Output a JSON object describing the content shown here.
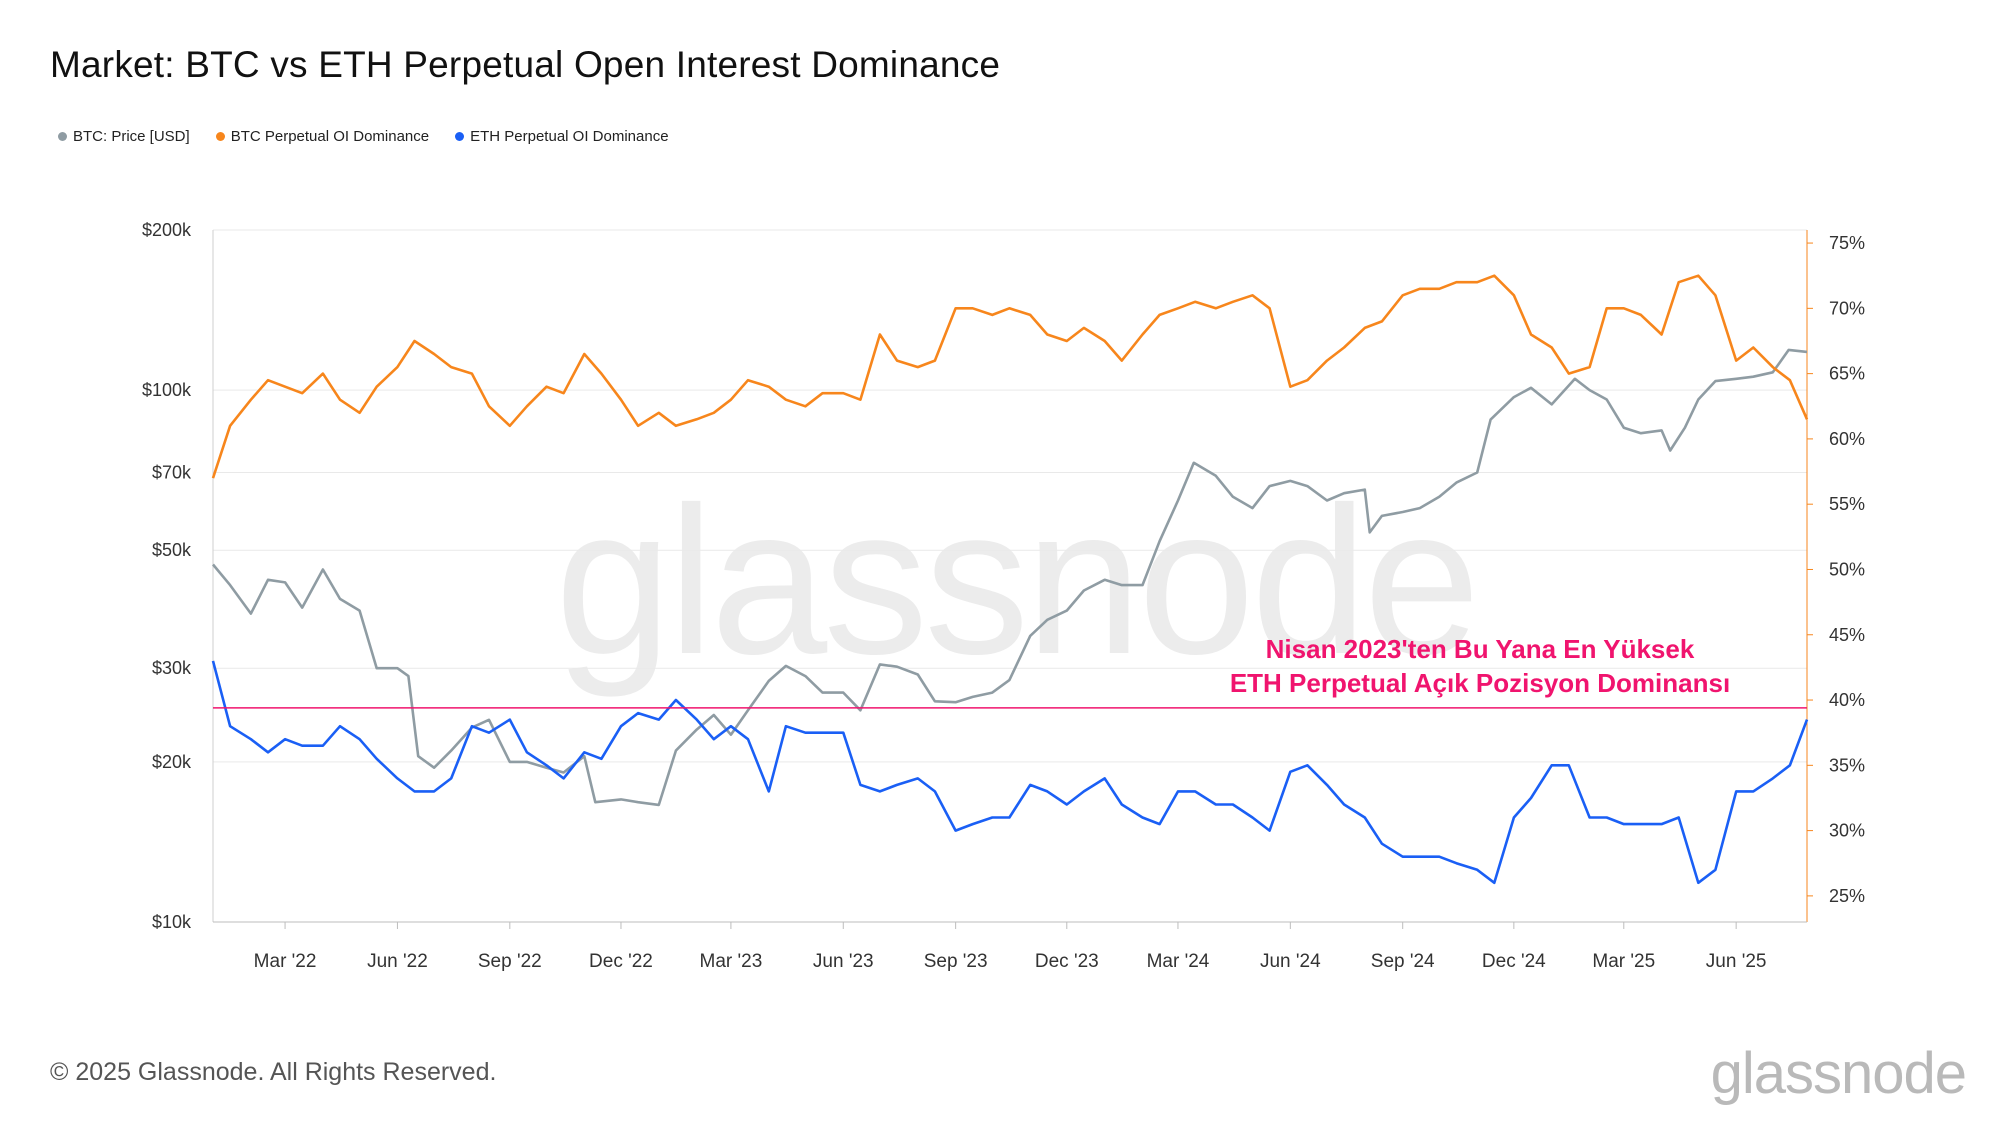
{
  "title": "Market: BTC vs ETH Perpetual Open Interest Dominance",
  "legend": [
    {
      "label": "BTC: Price [USD]",
      "color": "#8f9ca3"
    },
    {
      "label": "BTC Perpetual OI Dominance",
      "color": "#f7861c"
    },
    {
      "label": "ETH Perpetual OI Dominance",
      "color": "#1a5ff5"
    }
  ],
  "annotation": {
    "line1": "Nisan 2023'ten Bu Yana En Yüksek",
    "line2": "ETH Perpetual Açık Pozisyon Dominansı",
    "color": "#f0146e"
  },
  "watermark": "glassnode",
  "footer": "© 2025 Glassnode. All Rights Reserved.",
  "logo": "glassnode",
  "chart_data": {
    "type": "line",
    "x_ticks": [
      "Mar '22",
      "Jun '22",
      "Sep '22",
      "Dec '22",
      "Mar '23",
      "Jun '23",
      "Sep '23",
      "Dec '23",
      "Mar '24",
      "Jun '24",
      "Sep '24",
      "Dec '24",
      "Mar '25",
      "Jun '25"
    ],
    "x_range": [
      "2022-01-01",
      "2025-07-29"
    ],
    "y_left": {
      "scale": "log",
      "ticks": [
        "$10k",
        "$20k",
        "$30k",
        "$50k",
        "$70k",
        "$100k",
        "$200k"
      ],
      "tick_values": [
        10000,
        20000,
        30000,
        50000,
        70000,
        100000,
        200000
      ],
      "range": [
        10000,
        200000
      ]
    },
    "y_right": {
      "scale": "linear",
      "ticks": [
        "25%",
        "30%",
        "35%",
        "40%",
        "45%",
        "50%",
        "55%",
        "60%",
        "65%",
        "70%",
        "75%"
      ],
      "tick_values": [
        25,
        30,
        35,
        40,
        45,
        50,
        55,
        60,
        65,
        70,
        75
      ],
      "range": [
        23,
        76
      ]
    },
    "reference_line": {
      "axis": "right",
      "value": 39.4,
      "color": "#f0146e"
    },
    "series": [
      {
        "name": "BTC: Price [USD]",
        "axis": "left",
        "color": "#8f9ca3",
        "x": [
          "2022-01-01",
          "2022-01-15",
          "2022-02-01",
          "2022-02-15",
          "2022-03-01",
          "2022-03-15",
          "2022-04-01",
          "2022-04-15",
          "2022-05-01",
          "2022-05-15",
          "2022-06-01",
          "2022-06-10",
          "2022-06-18",
          "2022-07-01",
          "2022-07-15",
          "2022-08-01",
          "2022-08-15",
          "2022-09-01",
          "2022-09-15",
          "2022-10-01",
          "2022-10-15",
          "2022-11-01",
          "2022-11-10",
          "2022-12-01",
          "2022-12-15",
          "2023-01-01",
          "2023-01-15",
          "2023-02-01",
          "2023-02-15",
          "2023-03-01",
          "2023-03-15",
          "2023-04-01",
          "2023-04-15",
          "2023-05-01",
          "2023-05-15",
          "2023-06-01",
          "2023-06-15",
          "2023-07-01",
          "2023-07-15",
          "2023-08-01",
          "2023-08-15",
          "2023-09-01",
          "2023-09-15",
          "2023-10-01",
          "2023-10-15",
          "2023-11-01",
          "2023-11-15",
          "2023-12-01",
          "2023-12-15",
          "2024-01-01",
          "2024-01-15",
          "2024-02-01",
          "2024-02-15",
          "2024-03-01",
          "2024-03-14",
          "2024-04-01",
          "2024-04-15",
          "2024-05-01",
          "2024-05-15",
          "2024-06-01",
          "2024-06-15",
          "2024-07-01",
          "2024-07-15",
          "2024-08-01",
          "2024-08-05",
          "2024-08-15",
          "2024-09-01",
          "2024-09-15",
          "2024-10-01",
          "2024-10-15",
          "2024-11-01",
          "2024-11-12",
          "2024-12-01",
          "2024-12-15",
          "2025-01-01",
          "2025-01-20",
          "2025-02-01",
          "2025-02-15",
          "2025-03-01",
          "2025-03-15",
          "2025-04-01",
          "2025-04-08",
          "2025-04-20",
          "2025-05-01",
          "2025-05-15",
          "2025-06-01",
          "2025-06-15",
          "2025-07-01",
          "2025-07-14",
          "2025-07-29"
        ],
        "values": [
          47000,
          43000,
          38000,
          44000,
          43500,
          39000,
          46000,
          40500,
          38500,
          30000,
          30000,
          29000,
          20500,
          19500,
          21000,
          23200,
          24000,
          20000,
          20000,
          19500,
          19100,
          20500,
          16800,
          17000,
          16800,
          16600,
          21000,
          23000,
          24500,
          22500,
          25000,
          28400,
          30300,
          29000,
          27000,
          27000,
          25000,
          30500,
          30200,
          29200,
          26000,
          25900,
          26500,
          27000,
          28500,
          34500,
          37000,
          38500,
          42000,
          44000,
          43000,
          43000,
          52000,
          62000,
          73000,
          69000,
          63000,
          60000,
          66000,
          67500,
          66000,
          62000,
          64000,
          65000,
          54000,
          58000,
          59000,
          60000,
          63000,
          67000,
          70000,
          88000,
          97000,
          101000,
          94000,
          105000,
          100000,
          96000,
          85000,
          83000,
          84000,
          77000,
          85000,
          96000,
          104000,
          105000,
          106000,
          108000,
          119000,
          118000
        ]
      },
      {
        "name": "BTC Perpetual OI Dominance",
        "axis": "right",
        "color": "#f7861c",
        "x": [
          "2022-01-01",
          "2022-01-15",
          "2022-02-01",
          "2022-02-15",
          "2022-03-01",
          "2022-03-15",
          "2022-04-01",
          "2022-04-15",
          "2022-05-01",
          "2022-05-15",
          "2022-06-01",
          "2022-06-15",
          "2022-07-01",
          "2022-07-15",
          "2022-08-01",
          "2022-08-15",
          "2022-09-01",
          "2022-09-15",
          "2022-10-01",
          "2022-10-15",
          "2022-11-01",
          "2022-11-15",
          "2022-12-01",
          "2022-12-15",
          "2023-01-01",
          "2023-01-15",
          "2023-02-01",
          "2023-02-15",
          "2023-03-01",
          "2023-03-15",
          "2023-04-01",
          "2023-04-15",
          "2023-05-01",
          "2023-05-15",
          "2023-06-01",
          "2023-06-15",
          "2023-07-01",
          "2023-07-15",
          "2023-08-01",
          "2023-08-15",
          "2023-09-01",
          "2023-09-15",
          "2023-10-01",
          "2023-10-15",
          "2023-11-01",
          "2023-11-15",
          "2023-12-01",
          "2023-12-15",
          "2024-01-01",
          "2024-01-15",
          "2024-02-01",
          "2024-02-15",
          "2024-03-01",
          "2024-03-15",
          "2024-04-01",
          "2024-04-15",
          "2024-05-01",
          "2024-05-15",
          "2024-06-01",
          "2024-06-15",
          "2024-07-01",
          "2024-07-15",
          "2024-08-01",
          "2024-08-15",
          "2024-09-01",
          "2024-09-15",
          "2024-10-01",
          "2024-10-15",
          "2024-11-01",
          "2024-11-15",
          "2024-12-01",
          "2024-12-15",
          "2025-01-01",
          "2025-01-15",
          "2025-02-01",
          "2025-02-15",
          "2025-03-01",
          "2025-03-15",
          "2025-04-01",
          "2025-04-15",
          "2025-05-01",
          "2025-05-15",
          "2025-06-01",
          "2025-06-15",
          "2025-07-01",
          "2025-07-15",
          "2025-07-29"
        ],
        "values": [
          57,
          61,
          63,
          64.5,
          64,
          63.5,
          65,
          63,
          62,
          64,
          65.5,
          67.5,
          66.5,
          65.5,
          65,
          62.5,
          61,
          62.5,
          64,
          63.5,
          66.5,
          65,
          63,
          61,
          62,
          61,
          61.5,
          62,
          63,
          64.5,
          64,
          63,
          62.5,
          63.5,
          63.5,
          63,
          68,
          66,
          65.5,
          66,
          70,
          70,
          69.5,
          70,
          69.5,
          68,
          67.5,
          68.5,
          67.5,
          66,
          68,
          69.5,
          70,
          70.5,
          70,
          70.5,
          71,
          70,
          64,
          64.5,
          66,
          67,
          68.5,
          69,
          71,
          71.5,
          71.5,
          72,
          72,
          72.5,
          71,
          68,
          67,
          65,
          65.5,
          70,
          70,
          69.5,
          68,
          72,
          72.5,
          71,
          66,
          67,
          65.5,
          64.5,
          61.5
        ]
      },
      {
        "name": "ETH Perpetual OI Dominance",
        "axis": "right",
        "color": "#1a5ff5",
        "x": [
          "2022-01-01",
          "2022-01-15",
          "2022-02-01",
          "2022-02-15",
          "2022-03-01",
          "2022-03-15",
          "2022-04-01",
          "2022-04-15",
          "2022-05-01",
          "2022-05-15",
          "2022-06-01",
          "2022-06-15",
          "2022-07-01",
          "2022-07-15",
          "2022-08-01",
          "2022-08-15",
          "2022-09-01",
          "2022-09-15",
          "2022-10-01",
          "2022-10-15",
          "2022-11-01",
          "2022-11-15",
          "2022-12-01",
          "2022-12-15",
          "2023-01-01",
          "2023-01-15",
          "2023-02-01",
          "2023-02-15",
          "2023-03-01",
          "2023-03-15",
          "2023-04-01",
          "2023-04-15",
          "2023-05-01",
          "2023-05-15",
          "2023-06-01",
          "2023-06-15",
          "2023-07-01",
          "2023-07-15",
          "2023-08-01",
          "2023-08-15",
          "2023-09-01",
          "2023-09-15",
          "2023-10-01",
          "2023-10-15",
          "2023-11-01",
          "2023-11-15",
          "2023-12-01",
          "2023-12-15",
          "2024-01-01",
          "2024-01-15",
          "2024-02-01",
          "2024-02-15",
          "2024-03-01",
          "2024-03-15",
          "2024-04-01",
          "2024-04-15",
          "2024-05-01",
          "2024-05-15",
          "2024-06-01",
          "2024-06-15",
          "2024-07-01",
          "2024-07-15",
          "2024-08-01",
          "2024-08-15",
          "2024-09-01",
          "2024-09-15",
          "2024-10-01",
          "2024-10-15",
          "2024-11-01",
          "2024-11-15",
          "2024-12-01",
          "2024-12-15",
          "2025-01-01",
          "2025-01-15",
          "2025-02-01",
          "2025-02-15",
          "2025-03-01",
          "2025-03-15",
          "2025-04-01",
          "2025-04-15",
          "2025-05-01",
          "2025-05-15",
          "2025-06-01",
          "2025-06-15",
          "2025-07-01",
          "2025-07-15",
          "2025-07-29"
        ],
        "values": [
          43,
          38,
          37,
          36,
          37,
          36.5,
          36.5,
          38,
          37,
          35.5,
          34,
          33,
          33,
          34,
          38,
          37.5,
          38.5,
          36,
          35,
          34,
          36,
          35.5,
          38,
          39,
          38.5,
          40,
          38.5,
          37,
          38,
          37,
          33,
          38,
          37.5,
          37.5,
          37.5,
          33.5,
          33,
          33.5,
          34,
          33,
          30,
          30.5,
          31,
          31,
          33.5,
          33,
          32,
          33,
          34,
          32,
          31,
          30.5,
          33,
          33,
          32,
          32,
          31,
          30,
          34.5,
          35,
          33.5,
          32,
          31,
          29,
          28,
          28,
          28,
          27.5,
          27,
          26,
          31,
          32.5,
          35,
          35,
          31,
          31,
          30.5,
          30.5,
          30.5,
          31,
          26,
          27,
          33,
          33,
          34,
          35,
          38.5
        ]
      }
    ]
  }
}
